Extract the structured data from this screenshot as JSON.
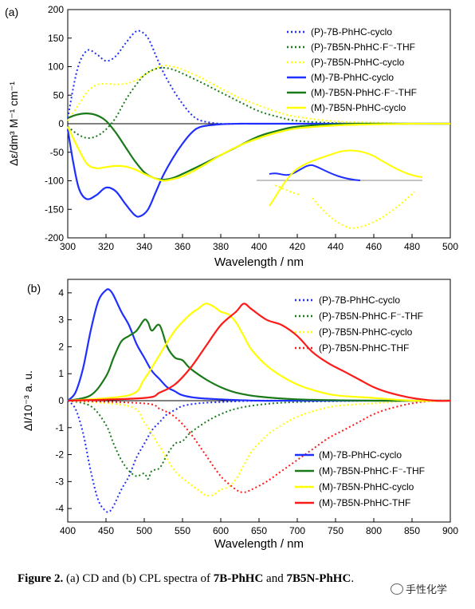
{
  "chart_data": [
    {
      "type": "line",
      "panel_label": "(a)",
      "ylabel": "Δε/dm³ M⁻¹ cm⁻¹",
      "xlabel": "Wavelength / nm",
      "xlim": [
        300,
        500
      ],
      "ylim": [
        -200,
        200
      ],
      "xticks": [
        "300",
        "320",
        "340",
        "360",
        "380",
        "400",
        "420",
        "440",
        "460",
        "480",
        "500"
      ],
      "yticks": [
        "200",
        "150",
        "100",
        "50",
        "0",
        "-50",
        "-100",
        "-150",
        "-200"
      ],
      "legend_position": "top-right",
      "series": [
        {
          "name": "(P)-7B-PhHC-cyclo",
          "color": "#1f2fff",
          "style": "dotted",
          "x": [
            300,
            305,
            310,
            315,
            320,
            325,
            330,
            335,
            338,
            342,
            346,
            350,
            355,
            360,
            365,
            370,
            380,
            390,
            400,
            420,
            450,
            500
          ],
          "y": [
            10,
            95,
            128,
            122,
            110,
            118,
            140,
            160,
            162,
            150,
            120,
            90,
            60,
            35,
            15,
            5,
            0,
            0,
            0,
            0,
            0,
            0
          ]
        },
        {
          "name": "(P)-7B5N-PhHC·F⁻-THF",
          "color": "#1a7a1a",
          "style": "dotted",
          "x": [
            300,
            305,
            310,
            315,
            320,
            325,
            330,
            335,
            340,
            345,
            350,
            355,
            360,
            370,
            380,
            390,
            400,
            410,
            420,
            440,
            460,
            500
          ],
          "y": [
            -5,
            -18,
            -25,
            -22,
            -10,
            10,
            40,
            65,
            85,
            95,
            98,
            95,
            88,
            72,
            55,
            38,
            22,
            12,
            5,
            1,
            0,
            0
          ]
        },
        {
          "name": "(P)-7B5N-PhHC-cyclo",
          "color": "#ffff00",
          "style": "dotted",
          "x": [
            300,
            305,
            310,
            315,
            320,
            325,
            330,
            335,
            340,
            345,
            350,
            355,
            360,
            370,
            380,
            390,
            400,
            410,
            420,
            440,
            460,
            480,
            500
          ],
          "y": [
            5,
            30,
            55,
            68,
            70,
            69,
            70,
            75,
            85,
            95,
            102,
            100,
            95,
            80,
            62,
            45,
            32,
            20,
            12,
            4,
            2,
            0,
            0
          ]
        },
        {
          "name": "(M)-7B-PhHC-cyclo",
          "color": "#1f2fff",
          "style": "solid",
          "x": [
            300,
            303,
            306,
            310,
            315,
            320,
            325,
            330,
            335,
            338,
            342,
            346,
            350,
            355,
            360,
            365,
            370,
            380,
            390,
            400,
            420,
            450,
            500
          ],
          "y": [
            -10,
            -70,
            -115,
            -132,
            -125,
            -112,
            -118,
            -140,
            -160,
            -162,
            -150,
            -120,
            -90,
            -60,
            -35,
            -15,
            -5,
            -1,
            0,
            0,
            0,
            0,
            0
          ]
        },
        {
          "name": "(M)-7B5N-PhHC·F⁻-THF",
          "color": "#1a7a1a",
          "style": "solid",
          "x": [
            300,
            305,
            310,
            315,
            320,
            325,
            330,
            335,
            340,
            345,
            350,
            355,
            360,
            370,
            380,
            390,
            400,
            410,
            420,
            440,
            460,
            500
          ],
          "y": [
            10,
            16,
            18,
            15,
            5,
            -15,
            -40,
            -65,
            -85,
            -95,
            -98,
            -95,
            -88,
            -72,
            -55,
            -38,
            -22,
            -12,
            -5,
            -1,
            0,
            0
          ]
        },
        {
          "name": "(M)-7B5N-PhHC-cyclo",
          "color": "#ffff00",
          "style": "solid",
          "x": [
            300,
            305,
            310,
            315,
            320,
            325,
            330,
            335,
            340,
            345,
            350,
            355,
            360,
            370,
            380,
            390,
            400,
            410,
            420,
            440,
            460,
            480,
            500
          ],
          "y": [
            -5,
            -40,
            -70,
            -78,
            -76,
            -74,
            -75,
            -80,
            -88,
            -95,
            -100,
            -97,
            -92,
            -75,
            -55,
            -38,
            -25,
            -15,
            -8,
            -3,
            -1,
            0,
            0
          ]
        }
      ]
    },
    {
      "type": "line",
      "panel_label": "(b)",
      "ylabel": "ΔI/10⁻³ a. u.",
      "xlabel": "Wavelength / nm",
      "xlim": [
        400,
        900
      ],
      "ylim": [
        -4.5,
        4.5
      ],
      "xticks": [
        "400",
        "450",
        "500",
        "550",
        "600",
        "650",
        "700",
        "750",
        "800",
        "850",
        "900"
      ],
      "yticks": [
        "4",
        "3",
        "2",
        "1",
        "0",
        "-1",
        "-2",
        "-3",
        "-4"
      ],
      "legend_position": "top-right and bottom-right",
      "series": [
        {
          "name": "(P)-7B-PhHC-cyclo",
          "color": "#1f2fff",
          "style": "dotted",
          "x": [
            400,
            410,
            420,
            430,
            440,
            450,
            455,
            460,
            470,
            480,
            490,
            500,
            510,
            520,
            530,
            540,
            550,
            570,
            600,
            650,
            700,
            800,
            900
          ],
          "y": [
            0,
            -0.3,
            -1.2,
            -2.6,
            -3.7,
            -4.1,
            -4.1,
            -3.9,
            -3.3,
            -2.8,
            -2.1,
            -1.6,
            -1.1,
            -0.8,
            -0.5,
            -0.35,
            -0.2,
            -0.1,
            -0.05,
            0,
            0,
            0,
            0
          ]
        },
        {
          "name": "(P)-7B5N-PhHC·F⁻-THF",
          "color": "#1a7a1a",
          "style": "dotted",
          "x": [
            400,
            430,
            450,
            460,
            470,
            480,
            490,
            500,
            505,
            510,
            520,
            530,
            540,
            550,
            560,
            580,
            600,
            620,
            650,
            700,
            800,
            900
          ],
          "y": [
            0,
            -0.2,
            -0.9,
            -1.6,
            -2.2,
            -2.6,
            -2.8,
            -2.7,
            -2.9,
            -2.6,
            -2.5,
            -2.0,
            -1.6,
            -1.5,
            -1.2,
            -0.8,
            -0.5,
            -0.3,
            -0.15,
            -0.05,
            0,
            0
          ]
        },
        {
          "name": "(P)-7B5N-PhHC-cyclo",
          "color": "#ffff00",
          "style": "dotted",
          "x": [
            400,
            480,
            500,
            520,
            540,
            560,
            570,
            580,
            590,
            600,
            610,
            620,
            630,
            640,
            660,
            680,
            700,
            720,
            750,
            800,
            850,
            900
          ],
          "y": [
            0,
            -0.2,
            -0.8,
            -1.7,
            -2.6,
            -3.1,
            -3.3,
            -3.5,
            -3.5,
            -3.3,
            -3.2,
            -2.9,
            -2.4,
            -1.9,
            -1.3,
            -0.9,
            -0.6,
            -0.4,
            -0.2,
            -0.1,
            0,
            0
          ]
        },
        {
          "name": "(P)-7B5N-PhHC-THF",
          "color": "#ff1a1a",
          "style": "dotted",
          "x": [
            400,
            500,
            520,
            540,
            560,
            580,
            600,
            620,
            630,
            640,
            660,
            680,
            700,
            720,
            740,
            760,
            780,
            800,
            820,
            850,
            880,
            900
          ],
          "y": [
            0,
            -0.1,
            -0.3,
            -0.6,
            -1.2,
            -2.0,
            -2.8,
            -3.3,
            -3.4,
            -3.3,
            -3.0,
            -2.6,
            -2.2,
            -1.8,
            -1.4,
            -1.1,
            -0.8,
            -0.5,
            -0.3,
            -0.1,
            0,
            0
          ]
        },
        {
          "name": "(M)-7B-PhHC-cyclo",
          "color": "#1f2fff",
          "style": "solid",
          "x": [
            400,
            410,
            420,
            430,
            440,
            450,
            455,
            460,
            470,
            480,
            490,
            500,
            510,
            520,
            530,
            540,
            550,
            570,
            600,
            650,
            700,
            800,
            900
          ],
          "y": [
            0,
            0.3,
            1.2,
            2.6,
            3.7,
            4.1,
            4.1,
            3.9,
            3.3,
            2.8,
            2.1,
            1.6,
            1.1,
            0.8,
            0.5,
            0.35,
            0.2,
            0.1,
            0.05,
            0,
            0,
            0,
            0
          ]
        },
        {
          "name": "(M)-7B5N-PhHC·F⁻-THF",
          "color": "#1a7a1a",
          "style": "solid",
          "x": [
            400,
            430,
            450,
            460,
            470,
            480,
            490,
            500,
            505,
            510,
            520,
            530,
            540,
            550,
            560,
            580,
            600,
            620,
            650,
            700,
            800,
            900
          ],
          "y": [
            0,
            0.2,
            0.9,
            1.6,
            2.2,
            2.4,
            2.6,
            3.0,
            2.9,
            2.6,
            2.8,
            2.0,
            1.6,
            1.5,
            1.2,
            0.8,
            0.5,
            0.3,
            0.15,
            0.05,
            0,
            0
          ]
        },
        {
          "name": "(M)-7B5N-PhHC-cyclo",
          "color": "#ffff00",
          "style": "solid",
          "x": [
            400,
            480,
            500,
            520,
            540,
            560,
            570,
            580,
            590,
            600,
            610,
            620,
            630,
            640,
            660,
            680,
            700,
            720,
            750,
            800,
            850,
            900
          ],
          "y": [
            0,
            0.2,
            0.8,
            1.7,
            2.6,
            3.2,
            3.4,
            3.6,
            3.5,
            3.3,
            3.2,
            2.9,
            2.4,
            1.9,
            1.3,
            0.9,
            0.6,
            0.4,
            0.2,
            0.1,
            0,
            0
          ]
        },
        {
          "name": "(M)-7B5N-PhHC-THF",
          "color": "#ff1a1a",
          "style": "solid",
          "x": [
            400,
            500,
            520,
            540,
            560,
            580,
            600,
            620,
            630,
            640,
            660,
            680,
            700,
            720,
            740,
            760,
            780,
            800,
            820,
            850,
            880,
            900
          ],
          "y": [
            0,
            0.1,
            0.3,
            0.6,
            1.2,
            2.0,
            2.8,
            3.3,
            3.6,
            3.4,
            3.0,
            2.8,
            2.4,
            1.8,
            1.4,
            1.1,
            0.8,
            0.5,
            0.3,
            0.1,
            0,
            0
          ]
        }
      ]
    }
  ],
  "caption": {
    "label": "Figure 2.",
    "text_before": " (a) CD and (b) CPL spectra of ",
    "compound_1": "7B-PhHC",
    "text_middle": " and ",
    "compound_2": "7B5N-PhHC",
    "text_after": "."
  },
  "watermark": {
    "text": "手性化学"
  }
}
